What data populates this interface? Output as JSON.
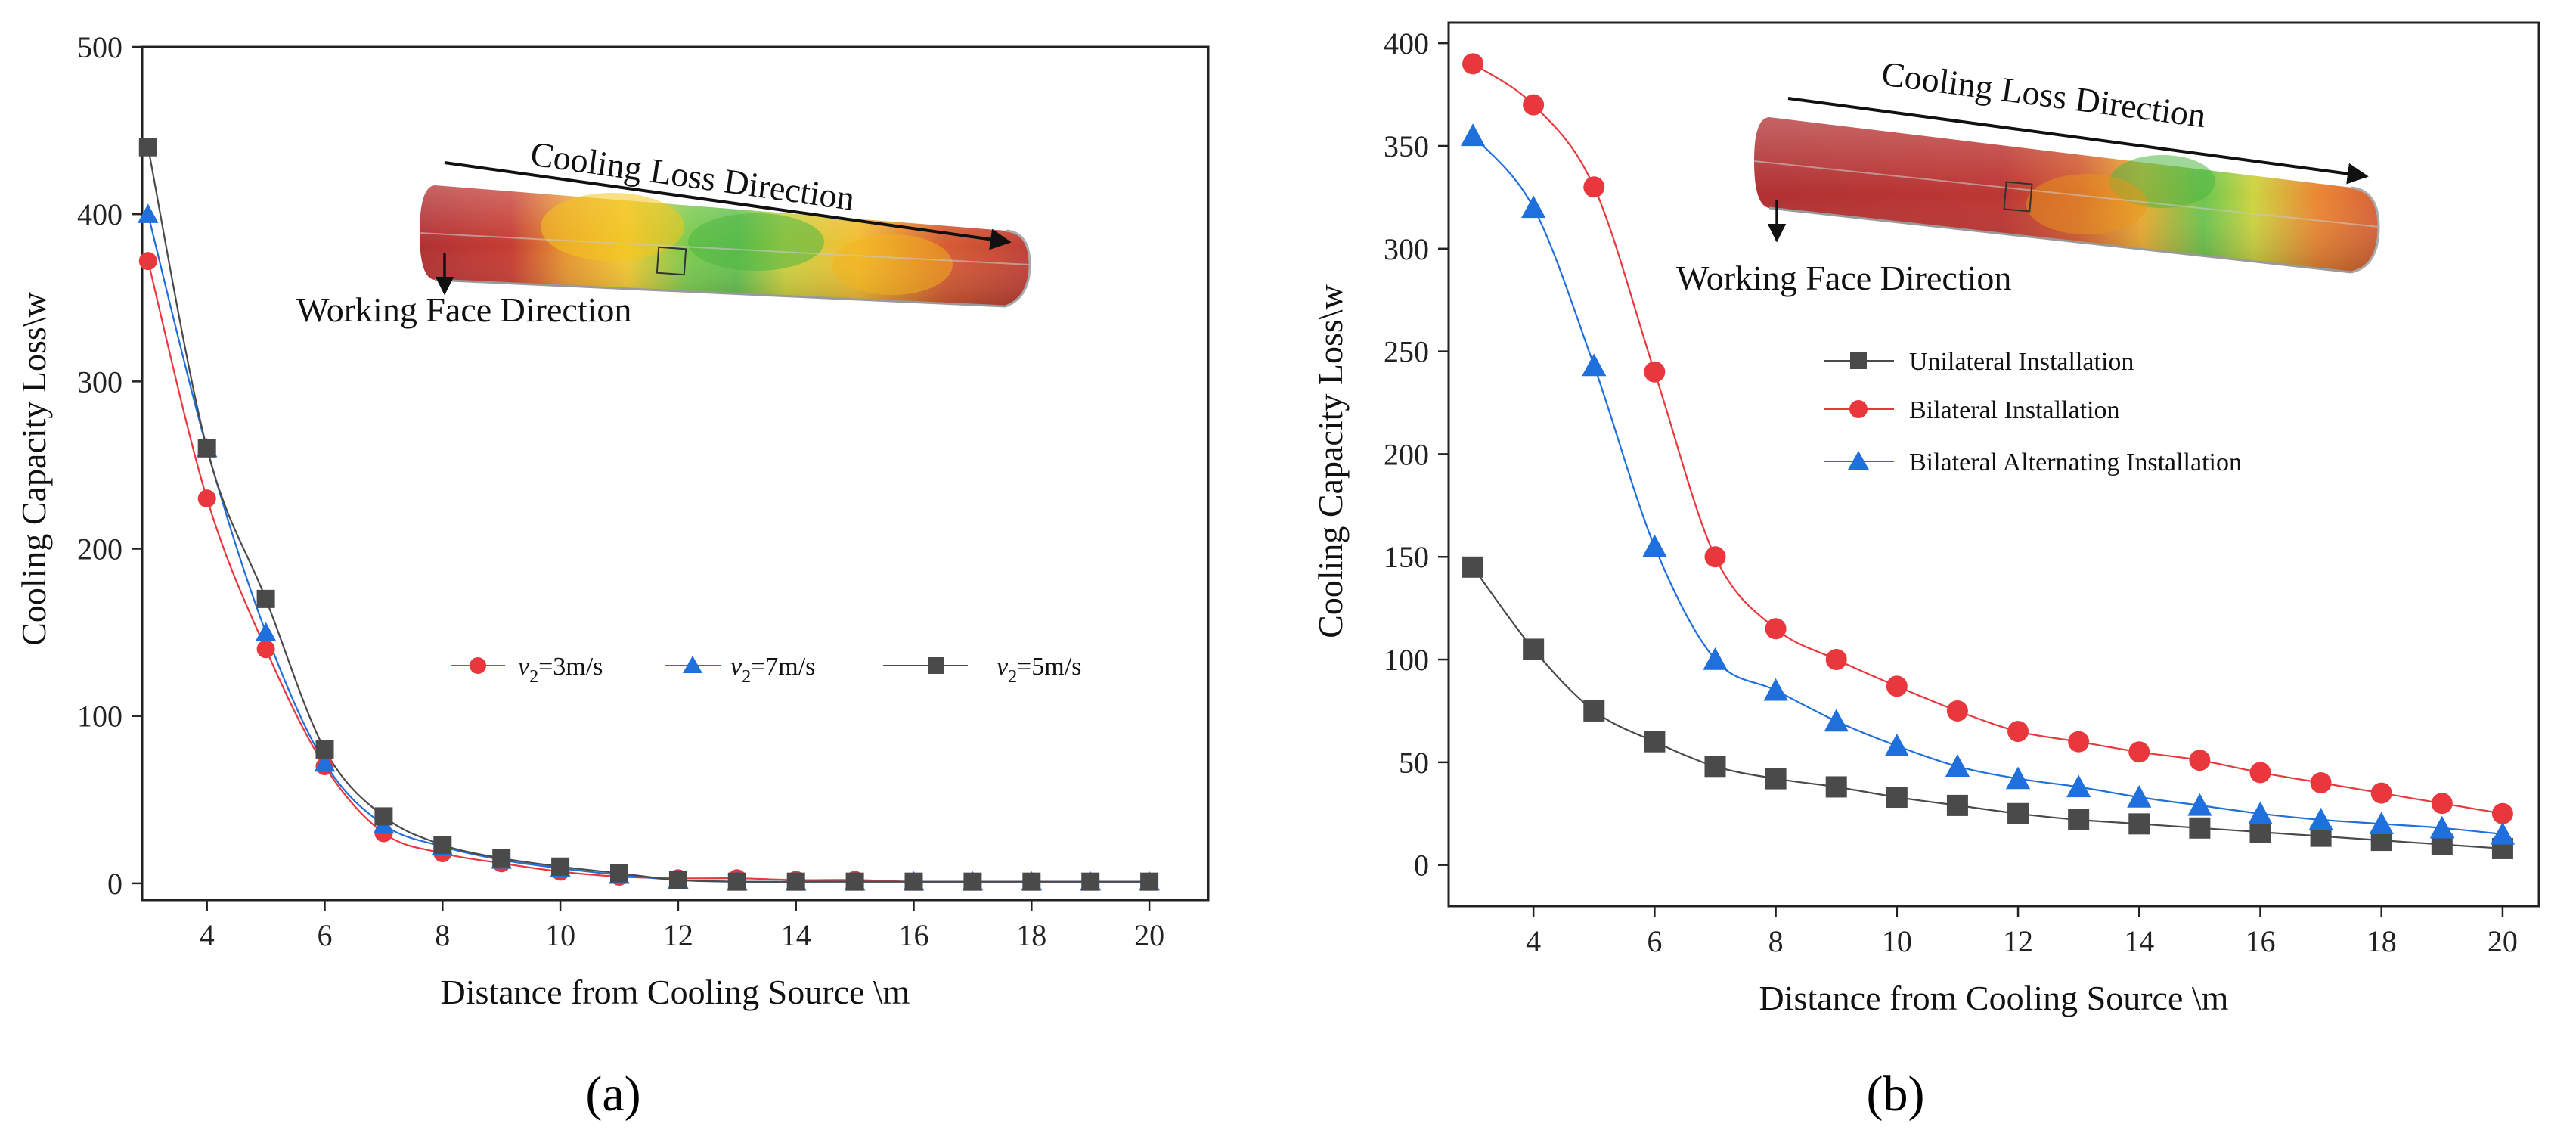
{
  "chart_data": [
    {
      "type": "line",
      "panel_label": "(a)",
      "xlabel": "Distance from Cooling Source \\m",
      "ylabel": "Cooling Capacity Loss\\w",
      "xlim": [
        2.9,
        21
      ],
      "ylim": [
        -10,
        500
      ],
      "xticks": [
        4,
        6,
        8,
        10,
        12,
        14,
        16,
        18,
        20
      ],
      "yticks": [
        0,
        100,
        200,
        300,
        400,
        500
      ],
      "x": [
        3,
        4,
        5,
        6,
        7,
        8,
        9,
        10,
        11,
        12,
        13,
        14,
        15,
        16,
        17,
        18,
        19,
        20
      ],
      "series": [
        {
          "name": "v2=3m/s",
          "label_main": "v",
          "label_sub": "2",
          "label_rest": "=3m/s",
          "color": "#e8383d",
          "marker": "circle",
          "values": [
            372,
            230,
            140,
            70,
            30,
            18,
            12,
            7,
            4,
            3,
            3,
            2,
            2,
            1,
            1,
            1,
            1,
            1
          ]
        },
        {
          "name": "v2=7m/s",
          "label_main": "v",
          "label_sub": "2",
          "label_rest": "=7m/s",
          "color": "#1f6fdc",
          "marker": "triangle",
          "values": [
            400,
            260,
            150,
            72,
            35,
            22,
            14,
            9,
            5,
            2,
            1,
            1,
            1,
            1,
            1,
            1,
            1,
            1
          ]
        },
        {
          "name": "v2=5m/s",
          "label_main": "v",
          "label_sub": "2",
          "label_rest": "=5m/s",
          "color": "#4a4a4a",
          "marker": "square",
          "values": [
            440,
            260,
            170,
            80,
            40,
            23,
            15,
            10,
            6,
            2,
            1,
            1,
            1,
            1,
            1,
            1,
            1,
            1
          ]
        }
      ],
      "annotations": {
        "top": "Cooling Loss Direction",
        "bottom": "Working Face Direction"
      },
      "legend": "center-right"
    },
    {
      "type": "line",
      "panel_label": "(b)",
      "xlabel": "Distance from Cooling Source \\m",
      "ylabel": "Cooling Capacity Loss\\w",
      "xlim": [
        2.6,
        20.6
      ],
      "ylim": [
        -20,
        410
      ],
      "xticks": [
        4,
        6,
        8,
        10,
        12,
        14,
        16,
        18,
        20
      ],
      "yticks": [
        0,
        50,
        100,
        150,
        200,
        250,
        300,
        350,
        400
      ],
      "x": [
        3,
        4,
        5,
        6,
        7,
        8,
        9,
        10,
        11,
        12,
        13,
        14,
        15,
        16,
        17,
        18,
        19,
        20
      ],
      "series": [
        {
          "name": "Unilateral Installation",
          "color": "#4a4a4a",
          "marker": "square",
          "values": [
            145,
            105,
            75,
            60,
            48,
            42,
            38,
            33,
            29,
            25,
            22,
            20,
            18,
            16,
            14,
            12,
            10,
            8
          ]
        },
        {
          "name": "Bilateral Installation",
          "color": "#e8383d",
          "marker": "circle",
          "values": [
            390,
            370,
            330,
            240,
            150,
            115,
            100,
            87,
            75,
            65,
            60,
            55,
            51,
            45,
            40,
            35,
            30,
            25
          ]
        },
        {
          "name": "Bilateral Alternating Installation",
          "color": "#1f6fdc",
          "marker": "triangle",
          "values": [
            355,
            320,
            243,
            155,
            100,
            85,
            70,
            58,
            48,
            42,
            38,
            33,
            29,
            25,
            22,
            20,
            18,
            15
          ]
        }
      ],
      "annotations": {
        "top": "Cooling Loss Direction",
        "bottom": "Working Face Direction"
      },
      "legend": "center-right"
    }
  ]
}
